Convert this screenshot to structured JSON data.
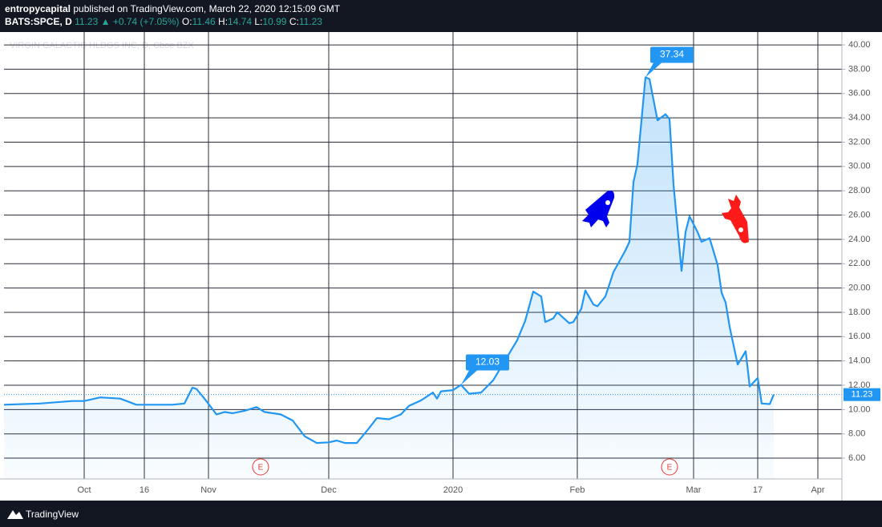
{
  "header": {
    "publisher": "entropycapital",
    "published": "published on TradingView.com, March 22, 2020 12:15:09 GMT",
    "symbol": "BATS:SPCE, D",
    "last": "11.23 ▲ +0.74 (+7.05%)",
    "ohlc": [
      {
        "key": "O:",
        "value": "11.46"
      },
      {
        "key": "H:",
        "value": "14.74"
      },
      {
        "key": "L:",
        "value": "10.99"
      },
      {
        "key": "C:",
        "value": "11.23"
      }
    ]
  },
  "footer": {
    "brand": "TradingView"
  },
  "chart_data": {
    "type": "area",
    "watermark": "VIRGIN GALACTIC HLDGS INC, D, Cboe BZX",
    "color": "#2196f3",
    "x": [
      "2019-09-11",
      "2019-09-20",
      "2019-09-28",
      "2019-10-01",
      "2019-10-05",
      "2019-10-10",
      "2019-10-14",
      "2019-10-23",
      "2019-10-26",
      "2019-10-28",
      "2019-10-29",
      "2019-10-31",
      "2019-11-03",
      "2019-11-05",
      "2019-11-07",
      "2019-11-10",
      "2019-11-13",
      "2019-11-15",
      "2019-11-19",
      "2019-11-22",
      "2019-11-25",
      "2019-11-28",
      "2019-12-01",
      "2019-12-03",
      "2019-12-05",
      "2019-12-08",
      "2019-12-11",
      "2019-12-13",
      "2019-12-16",
      "2019-12-19",
      "2019-12-21",
      "2019-12-24",
      "2019-12-27",
      "2019-12-28",
      "2019-12-29",
      "2020-01-01",
      "2020-01-03",
      "2020-01-05",
      "2020-01-08",
      "2020-01-11",
      "2020-01-14",
      "2020-01-17",
      "2020-01-19",
      "2020-01-21",
      "2020-01-23",
      "2020-01-24",
      "2020-01-26",
      "2020-01-27",
      "2020-01-30",
      "2020-01-31",
      "2020-02-02",
      "2020-02-03",
      "2020-02-05",
      "2020-02-06",
      "2020-02-08",
      "2020-02-10",
      "2020-02-13",
      "2020-02-14",
      "2020-02-15",
      "2020-02-16",
      "2020-02-18",
      "2020-02-19",
      "2020-02-21",
      "2020-02-23",
      "2020-02-24",
      "2020-02-25",
      "2020-02-27",
      "2020-02-28",
      "2020-02-29",
      "2020-03-02",
      "2020-03-03",
      "2020-03-05",
      "2020-03-07",
      "2020-03-08",
      "2020-03-09",
      "2020-03-10",
      "2020-03-12",
      "2020-03-14",
      "2020-03-15",
      "2020-03-17",
      "2020-03-18",
      "2020-03-20",
      "2020-03-21"
    ],
    "values": [
      10.4,
      10.5,
      10.7,
      10.7,
      11.0,
      10.9,
      10.4,
      10.4,
      10.5,
      11.8,
      11.7,
      10.9,
      9.6,
      9.8,
      9.7,
      9.9,
      10.2,
      9.8,
      9.6,
      9.1,
      7.8,
      7.25,
      7.3,
      7.45,
      7.25,
      7.25,
      8.45,
      9.3,
      9.2,
      9.6,
      10.3,
      10.75,
      11.4,
      10.9,
      11.5,
      11.6,
      12.03,
      11.3,
      11.4,
      12.4,
      14.05,
      15.7,
      17.3,
      19.7,
      19.3,
      17.2,
      17.5,
      18.0,
      17.1,
      17.2,
      18.3,
      19.8,
      18.65,
      18.5,
      19.3,
      21.3,
      23.1,
      23.8,
      28.7,
      30.2,
      37.34,
      37.2,
      33.8,
      34.3,
      33.9,
      28.5,
      21.4,
      24.6,
      25.9,
      24.6,
      23.8,
      24.1,
      21.9,
      19.6,
      18.8,
      16.8,
      13.7,
      14.8,
      11.9,
      12.6,
      10.5,
      10.45,
      11.23
    ],
    "xlim": [
      "2019-09-11",
      "2020-04-07"
    ],
    "xticks": [
      {
        "value": "2019-10-01",
        "label": "Oct"
      },
      {
        "value": "2019-10-16",
        "label": "16"
      },
      {
        "value": "2019-11-01",
        "label": "Nov"
      },
      {
        "value": "2019-12-01",
        "label": "Dec"
      },
      {
        "value": "2020-01-01",
        "label": "2020"
      },
      {
        "value": "2020-02-01",
        "label": "Feb"
      },
      {
        "value": "2020-03-01",
        "label": "Mar"
      },
      {
        "value": "2020-03-17",
        "label": "17"
      },
      {
        "value": "2020-04-01",
        "label": "Apr"
      }
    ],
    "ylim": [
      4.29,
      41.06
    ],
    "yticks": [
      {
        "value": 6,
        "label": "6.00"
      },
      {
        "value": 8,
        "label": "8.00"
      },
      {
        "value": 10,
        "label": "10.00"
      },
      {
        "value": 12,
        "label": "12.00"
      },
      {
        "value": 14,
        "label": "14.00"
      },
      {
        "value": 16,
        "label": "16.00"
      },
      {
        "value": 18,
        "label": "18.00"
      },
      {
        "value": 20,
        "label": "20.00"
      },
      {
        "value": 22,
        "label": "22.00"
      },
      {
        "value": 24,
        "label": "24.00"
      },
      {
        "value": 26,
        "label": "26.00"
      },
      {
        "value": 28,
        "label": "28.00"
      },
      {
        "value": 30,
        "label": "30.00"
      },
      {
        "value": 32,
        "label": "32.00"
      },
      {
        "value": 34,
        "label": "34.00"
      },
      {
        "value": 36,
        "label": "36.00"
      },
      {
        "value": 38,
        "label": "38.00"
      },
      {
        "value": 40,
        "label": "40.00"
      }
    ],
    "grid": true,
    "last_price": 11.23,
    "callouts": [
      {
        "x": "2020-02-18",
        "value": 37.34
      },
      {
        "x": "2020-01-03",
        "value": 12.03
      }
    ],
    "events": [
      {
        "x": "2019-11-14",
        "label": "E"
      },
      {
        "x": "2020-02-24",
        "label": "E"
      }
    ]
  }
}
